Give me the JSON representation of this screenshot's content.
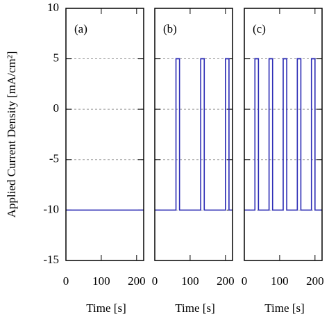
{
  "chart_data": [
    {
      "type": "line",
      "annotation": "(a)",
      "xlabel": "Time [s]",
      "ylabel": "Applied Current Density [mA/cm²]",
      "x": [
        0,
        220
      ],
      "values": [
        -10,
        -10
      ],
      "color": "#2a2ab4",
      "xlim": [
        0,
        220
      ],
      "xticks": [
        0,
        100,
        200
      ],
      "ylim": [
        -15,
        10
      ],
      "yticks": [
        -15,
        -10,
        -5,
        0,
        5,
        10
      ],
      "grid": true
    },
    {
      "type": "line",
      "annotation": "(b)",
      "xlabel": "Time [s]",
      "x": [
        0,
        60,
        60,
        70,
        70,
        130,
        130,
        140,
        140,
        200,
        200,
        210,
        210,
        220
      ],
      "values": [
        -10,
        -10,
        5,
        5,
        -10,
        -10,
        5,
        5,
        -10,
        -10,
        5,
        5,
        -10,
        -10
      ],
      "color": "#2a2ab4",
      "xlim": [
        0,
        220
      ],
      "xticks": [
        0,
        100,
        200
      ],
      "ylim": [
        -15,
        10
      ],
      "yticks": [
        -15,
        -10,
        -5,
        0,
        5,
        10
      ],
      "grid": true
    },
    {
      "type": "line",
      "annotation": "(c)",
      "xlabel": "Time [s]",
      "x": [
        0,
        30,
        30,
        40,
        40,
        70,
        70,
        80,
        80,
        110,
        110,
        120,
        120,
        150,
        150,
        160,
        160,
        190,
        190,
        200,
        200,
        220
      ],
      "values": [
        -10,
        -10,
        5,
        5,
        -10,
        -10,
        5,
        5,
        -10,
        -10,
        5,
        5,
        -10,
        -10,
        5,
        5,
        -10,
        -10,
        5,
        5,
        -10,
        -10
      ],
      "color": "#2a2ab4",
      "xlim": [
        0,
        220
      ],
      "xticks": [
        0,
        100,
        200
      ],
      "ylim": [
        -15,
        10
      ],
      "yticks": [
        -15,
        -10,
        -5,
        0,
        5,
        10
      ],
      "grid": true
    }
  ]
}
